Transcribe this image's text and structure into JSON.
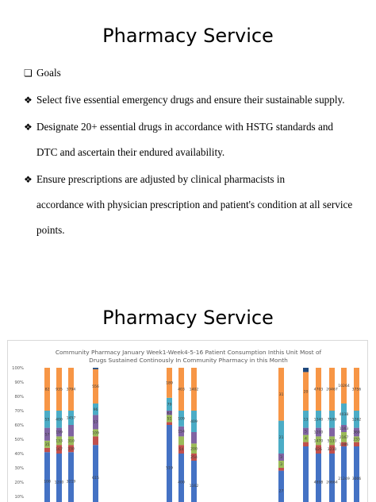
{
  "slide1": {
    "title": "Pharmacy Service",
    "goals_label": "Goals",
    "bullets": [
      [
        "Select five essential emergency drugs and ensure their sustainable supply."
      ],
      [
        "Designate 20+ essential drugs in accordance with HSTG standards and",
        "DTC and ascertain their endured availability."
      ],
      [
        "Ensure prescriptions are adjusted by clinical pharmacists in",
        "accordance with physician prescription and patient's condition at all service",
        "points."
      ]
    ]
  },
  "slide2": {
    "title": "Pharmacy Service",
    "chart_title_line1": "Community Pharmacy January  Week1-Week4-5-16 Patient Consumption Inthis Unit Most of",
    "chart_title_line2": "Drugs Sustained  Continously In Community Pharmacy in this  Month"
  },
  "colors": {
    "blue": "#4472c4",
    "red": "#c0504d",
    "green": "#9bbb59",
    "purple": "#8064a2",
    "teal": "#4bacc6",
    "orange": "#f79646",
    "navy": "#1f497d"
  },
  "chart_data": {
    "type": "bar",
    "stacking": "percent",
    "title": "Community Pharmacy January  Week1-Week4-5-16 Patient Consumption Inthis Unit Most of Drugs Sustained  Continously In Community Pharmacy in this  Month",
    "ylim": [
      0,
      100
    ],
    "yticks": [
      "100%",
      "90%",
      "80%",
      "70%",
      "60%",
      "50%",
      "40%",
      "30%",
      "20%",
      "10%"
    ],
    "grid": false,
    "note": "Chart is cropped at the bottom edge of the image; only partially visible stacked percentage columns.",
    "bars": [
      {
        "segments": [
          {
            "color": "blue",
            "from": 0,
            "to": 41,
            "label": "108"
          },
          {
            "color": "red",
            "from": 41,
            "to": 44,
            "label": ""
          },
          {
            "color": "green",
            "from": 44,
            "to": 49,
            "label": "35"
          },
          {
            "color": "purple",
            "from": 49,
            "to": 58,
            "label": "57"
          },
          {
            "color": "teal",
            "from": 58,
            "to": 70,
            "label": "55"
          },
          {
            "color": "orange",
            "from": 70,
            "to": 100,
            "label": "82"
          }
        ]
      },
      {
        "segments": [
          {
            "color": "blue",
            "from": 0,
            "to": 40,
            "label": "1200"
          },
          {
            "color": "red",
            "from": 40,
            "to": 46,
            "label": "167"
          },
          {
            "color": "green",
            "from": 46,
            "to": 52,
            "label": "133"
          },
          {
            "color": "purple",
            "from": 52,
            "to": 58,
            "label": "199"
          },
          {
            "color": "teal",
            "from": 58,
            "to": 70,
            "label": "400"
          },
          {
            "color": "orange",
            "from": 70,
            "to": 100,
            "label": "935"
          }
        ]
      },
      {
        "segments": [
          {
            "color": "blue",
            "from": 0,
            "to": 41,
            "label": "3219"
          },
          {
            "color": "red",
            "from": 41,
            "to": 46,
            "label": "330"
          },
          {
            "color": "green",
            "from": 46,
            "to": 52,
            "label": "310"
          },
          {
            "color": "purple",
            "from": 52,
            "to": 60,
            "label": ""
          },
          {
            "color": "teal",
            "from": 60,
            "to": 70,
            "label": "1457"
          },
          {
            "color": "orange",
            "from": 70,
            "to": 100,
            "label": "3794"
          }
        ]
      },
      {
        "segments": [
          {
            "color": "blue",
            "from": 0,
            "to": 46,
            "label": "615"
          },
          {
            "color": "red",
            "from": 46,
            "to": 52,
            "label": ""
          },
          {
            "color": "green",
            "from": 52,
            "to": 57,
            "label": "109"
          },
          {
            "color": "purple",
            "from": 57,
            "to": 67,
            "label": "57"
          },
          {
            "color": "teal",
            "from": 67,
            "to": 75,
            "label": "96"
          },
          {
            "color": "orange",
            "from": 75,
            "to": 99,
            "label": "556"
          },
          {
            "color": "navy",
            "from": 99,
            "to": 100,
            "label": ""
          }
        ]
      },
      {
        "segments": [
          {
            "color": "blue",
            "from": 0,
            "to": 60,
            "label": "519"
          },
          {
            "color": "red",
            "from": 60,
            "to": 62,
            "label": ""
          },
          {
            "color": "green",
            "from": 62,
            "to": 67,
            "label": "51"
          },
          {
            "color": "purple",
            "from": 67,
            "to": 70,
            "label": "62"
          },
          {
            "color": "teal",
            "from": 70,
            "to": 79,
            "label": "79"
          },
          {
            "color": "orange",
            "from": 79,
            "to": 100,
            "label": "189"
          }
        ]
      },
      {
        "segments": [
          {
            "color": "blue",
            "from": 0,
            "to": 40,
            "label": "400"
          },
          {
            "color": "red",
            "from": 40,
            "to": 46,
            "label": "54"
          },
          {
            "color": "green",
            "from": 46,
            "to": 52,
            "label": ""
          },
          {
            "color": "purple",
            "from": 52,
            "to": 59,
            "label": "154"
          },
          {
            "color": "teal",
            "from": 59,
            "to": 70,
            "label": "109"
          },
          {
            "color": "orange",
            "from": 70,
            "to": 100,
            "label": "403"
          }
        ]
      },
      {
        "segments": [
          {
            "color": "blue",
            "from": 0,
            "to": 35,
            "label": "1162"
          },
          {
            "color": "red",
            "from": 35,
            "to": 40,
            "label": "254"
          },
          {
            "color": "green",
            "from": 40,
            "to": 47,
            "label": "200"
          },
          {
            "color": "purple",
            "from": 47,
            "to": 55,
            "label": ""
          },
          {
            "color": "teal",
            "from": 55,
            "to": 70,
            "label": "409"
          },
          {
            "color": "orange",
            "from": 70,
            "to": 100,
            "label": "1402"
          }
        ]
      },
      {
        "segments": [
          {
            "color": "blue",
            "from": 0,
            "to": 28,
            "label": "27"
          },
          {
            "color": "red",
            "from": 28,
            "to": 30,
            "label": ""
          },
          {
            "color": "green",
            "from": 30,
            "to": 35,
            "label": "3"
          },
          {
            "color": "purple",
            "from": 35,
            "to": 40,
            "label": "3"
          },
          {
            "color": "teal",
            "from": 40,
            "to": 63,
            "label": "21"
          },
          {
            "color": "orange",
            "from": 63,
            "to": 100,
            "label": "31"
          }
        ]
      },
      {
        "segments": [
          {
            "color": "blue",
            "from": 0,
            "to": 45,
            "label": ""
          },
          {
            "color": "red",
            "from": 45,
            "to": 48,
            "label": ""
          },
          {
            "color": "green",
            "from": 48,
            "to": 53,
            "label": "4"
          },
          {
            "color": "purple",
            "from": 53,
            "to": 58,
            "label": "5"
          },
          {
            "color": "teal",
            "from": 58,
            "to": 70,
            "label": "13"
          },
          {
            "color": "orange",
            "from": 70,
            "to": 97,
            "label": "20"
          },
          {
            "color": "navy",
            "from": 97,
            "to": 100,
            "label": ""
          }
        ]
      },
      {
        "segments": [
          {
            "color": "blue",
            "from": 0,
            "to": 40,
            "label": "4898"
          },
          {
            "color": "red",
            "from": 40,
            "to": 46,
            "label": "826"
          },
          {
            "color": "green",
            "from": 46,
            "to": 52,
            "label": "1470"
          },
          {
            "color": "purple",
            "from": 52,
            "to": 58,
            "label": "1200"
          },
          {
            "color": "teal",
            "from": 58,
            "to": 70,
            "label": "1340"
          },
          {
            "color": "orange",
            "from": 70,
            "to": 100,
            "label": "4703"
          }
        ]
      },
      {
        "segments": [
          {
            "color": "blue",
            "from": 0,
            "to": 40,
            "label": "20664"
          },
          {
            "color": "red",
            "from": 40,
            "to": 46,
            "label": "3230"
          },
          {
            "color": "green",
            "from": 46,
            "to": 52,
            "label": "5133"
          },
          {
            "color": "purple",
            "from": 52,
            "to": 58,
            "label": ""
          },
          {
            "color": "teal",
            "from": 58,
            "to": 70,
            "label": "7599"
          },
          {
            "color": "orange",
            "from": 70,
            "to": 100,
            "label": "20467"
          }
        ]
      },
      {
        "segments": [
          {
            "color": "blue",
            "from": 0,
            "to": 45,
            "label": "21249"
          },
          {
            "color": "red",
            "from": 45,
            "to": 48,
            "label": "1386"
          },
          {
            "color": "green",
            "from": 48,
            "to": 55,
            "label": "2167"
          },
          {
            "color": "purple",
            "from": 55,
            "to": 60,
            "label": "1163"
          },
          {
            "color": "teal",
            "from": 60,
            "to": 75,
            "label": "4038"
          },
          {
            "color": "orange",
            "from": 75,
            "to": 100,
            "label": "10264"
          }
        ]
      },
      {
        "segments": [
          {
            "color": "blue",
            "from": 0,
            "to": 45,
            "label": "3006"
          },
          {
            "color": "red",
            "from": 45,
            "to": 48,
            "label": ""
          },
          {
            "color": "green",
            "from": 48,
            "to": 52,
            "label": "233"
          },
          {
            "color": "purple",
            "from": 52,
            "to": 58,
            "label": "368"
          },
          {
            "color": "teal",
            "from": 58,
            "to": 70,
            "label": "1262"
          },
          {
            "color": "orange",
            "from": 70,
            "to": 100,
            "label": "3756"
          }
        ]
      }
    ]
  }
}
